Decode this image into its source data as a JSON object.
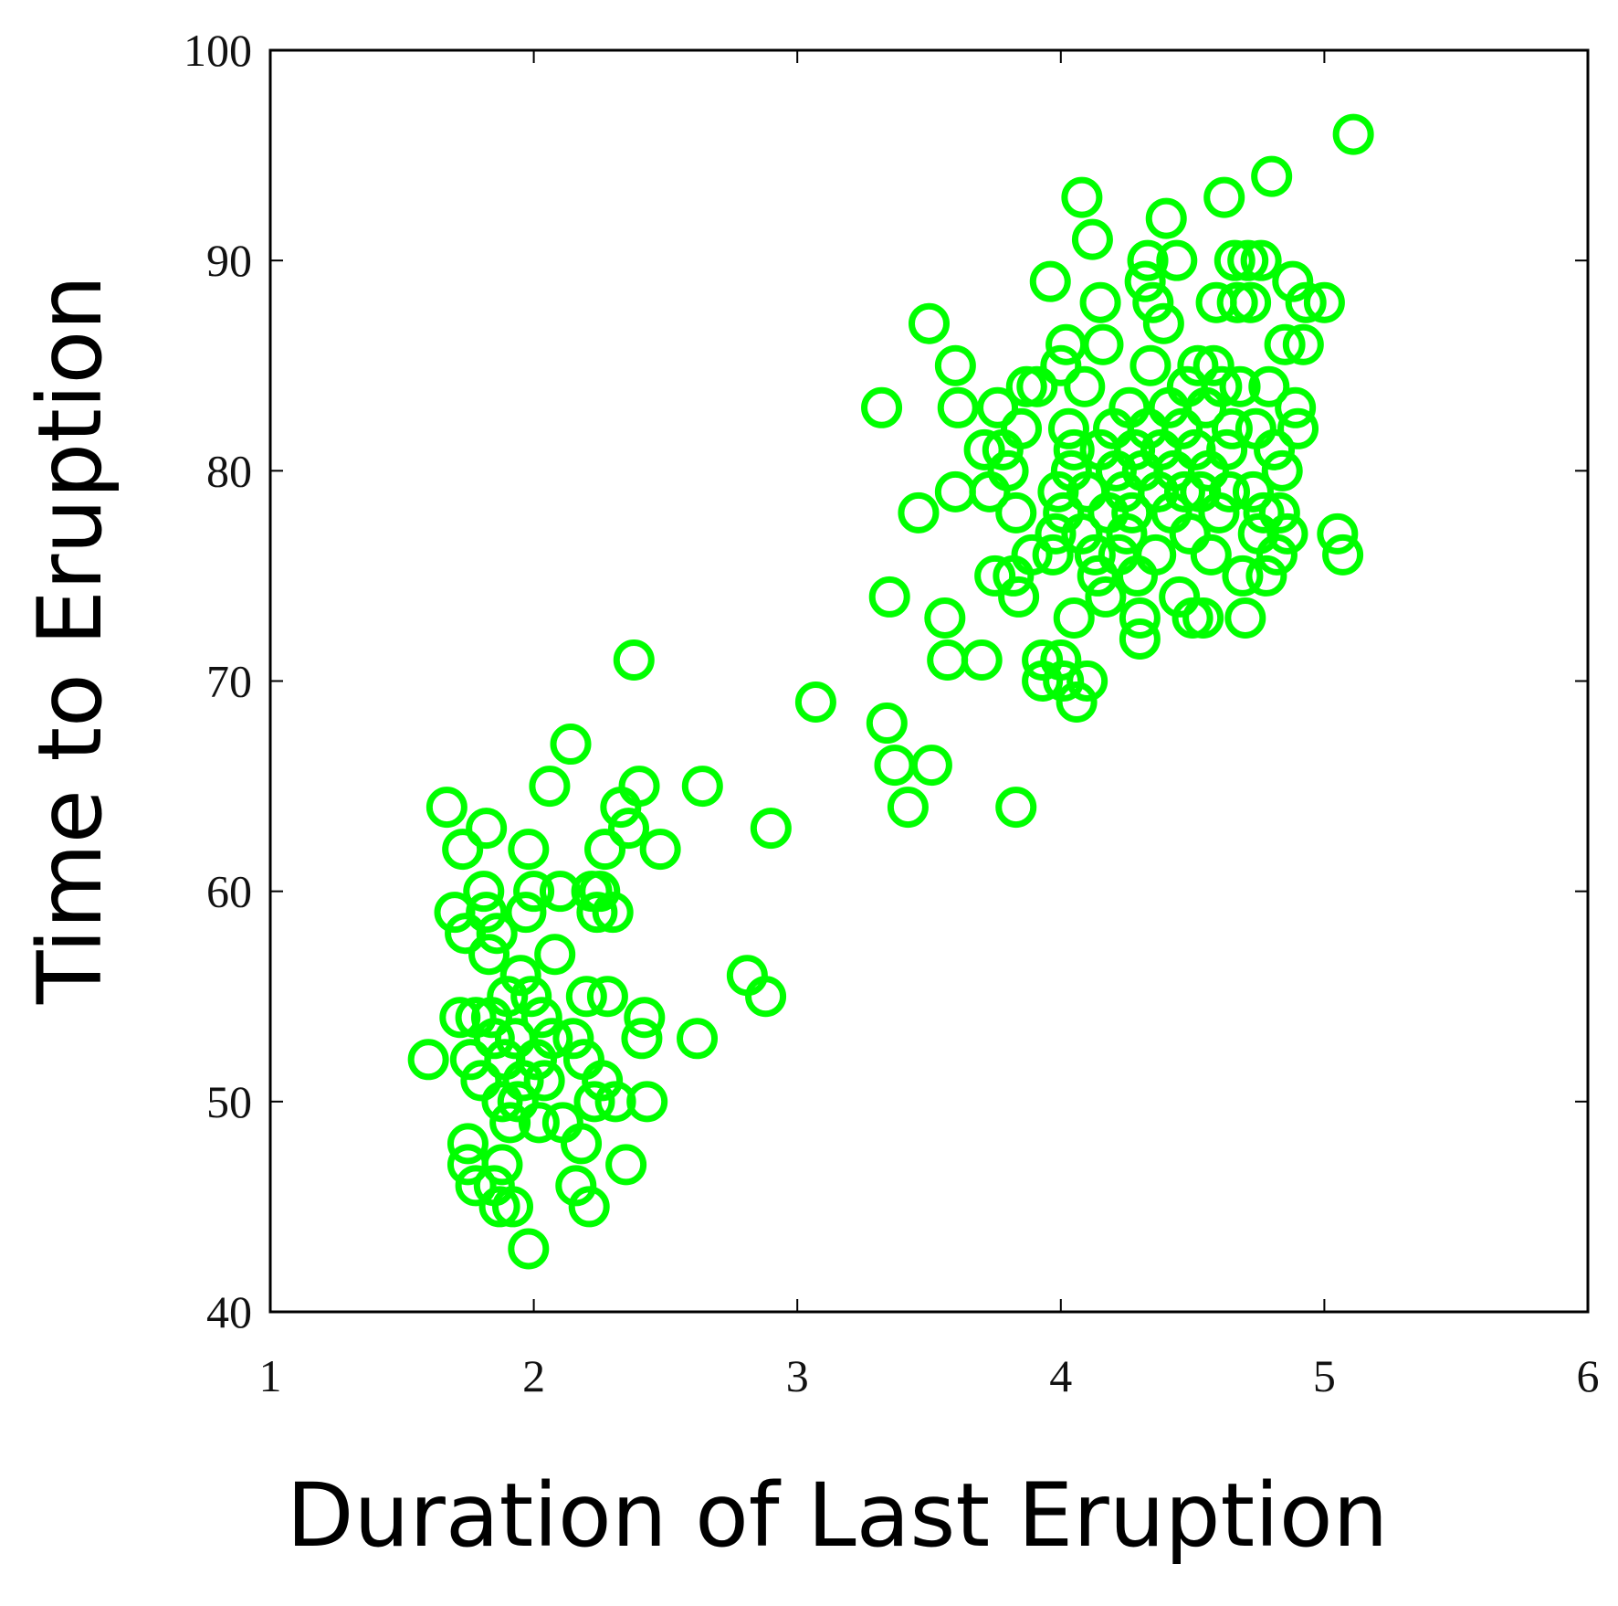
{
  "chart_data": {
    "type": "scatter",
    "title": "",
    "xlabel": "Duration of Last Eruption",
    "ylabel": "Time to Eruption",
    "xlim": [
      1,
      6
    ],
    "ylim": [
      40,
      100
    ],
    "xticks": [
      1,
      2,
      3,
      4,
      5,
      6
    ],
    "yticks": [
      40,
      50,
      60,
      70,
      80,
      90,
      100
    ],
    "grid": false,
    "marker": "open-circle",
    "marker_color": "#00ff00",
    "points": [
      [
        1.6,
        52
      ],
      [
        1.67,
        64
      ],
      [
        1.7,
        59
      ],
      [
        1.72,
        54
      ],
      [
        1.73,
        62
      ],
      [
        1.74,
        58
      ],
      [
        1.75,
        48
      ],
      [
        1.75,
        47
      ],
      [
        1.76,
        52
      ],
      [
        1.78,
        46
      ],
      [
        1.78,
        54
      ],
      [
        1.8,
        51
      ],
      [
        1.81,
        60
      ],
      [
        1.82,
        63
      ],
      [
        1.82,
        59
      ],
      [
        1.83,
        57
      ],
      [
        1.84,
        54
      ],
      [
        1.85,
        53
      ],
      [
        1.85,
        46
      ],
      [
        1.86,
        58
      ],
      [
        1.87,
        45
      ],
      [
        1.88,
        50
      ],
      [
        1.88,
        47
      ],
      [
        1.89,
        52
      ],
      [
        1.9,
        55
      ],
      [
        1.91,
        49
      ],
      [
        1.92,
        45
      ],
      [
        1.93,
        53
      ],
      [
        1.94,
        50
      ],
      [
        1.95,
        56
      ],
      [
        1.96,
        51
      ],
      [
        1.97,
        59
      ],
      [
        1.98,
        62
      ],
      [
        1.98,
        43
      ],
      [
        1.99,
        55
      ],
      [
        2.0,
        60
      ],
      [
        2.01,
        52
      ],
      [
        2.02,
        49
      ],
      [
        2.03,
        54
      ],
      [
        2.04,
        51
      ],
      [
        2.06,
        65
      ],
      [
        2.07,
        53
      ],
      [
        2.08,
        57
      ],
      [
        2.1,
        60
      ],
      [
        2.11,
        49
      ],
      [
        2.14,
        67
      ],
      [
        2.15,
        53
      ],
      [
        2.16,
        46
      ],
      [
        2.18,
        48
      ],
      [
        2.19,
        52
      ],
      [
        2.2,
        55
      ],
      [
        2.21,
        45
      ],
      [
        2.22,
        60
      ],
      [
        2.23,
        50
      ],
      [
        2.24,
        59
      ],
      [
        2.25,
        60
      ],
      [
        2.26,
        51
      ],
      [
        2.27,
        62
      ],
      [
        2.28,
        55
      ],
      [
        2.3,
        59
      ],
      [
        2.31,
        50
      ],
      [
        2.33,
        64
      ],
      [
        2.35,
        47
      ],
      [
        2.36,
        63
      ],
      [
        2.38,
        71
      ],
      [
        2.4,
        65
      ],
      [
        2.41,
        53
      ],
      [
        2.42,
        54
      ],
      [
        2.43,
        50
      ],
      [
        2.48,
        62
      ],
      [
        2.62,
        53
      ],
      [
        2.64,
        65
      ],
      [
        2.81,
        56
      ],
      [
        2.88,
        55
      ],
      [
        2.9,
        63
      ],
      [
        3.07,
        69
      ],
      [
        3.32,
        83
      ],
      [
        3.34,
        68
      ],
      [
        3.35,
        74
      ],
      [
        3.37,
        66
      ],
      [
        3.42,
        64
      ],
      [
        3.46,
        78
      ],
      [
        3.5,
        87
      ],
      [
        3.51,
        66
      ],
      [
        3.56,
        73
      ],
      [
        3.57,
        71
      ],
      [
        3.6,
        85
      ],
      [
        3.6,
        79
      ],
      [
        3.61,
        83
      ],
      [
        3.7,
        71
      ],
      [
        3.71,
        81
      ],
      [
        3.73,
        79
      ],
      [
        3.75,
        75
      ],
      [
        3.76,
        83
      ],
      [
        3.78,
        81
      ],
      [
        3.8,
        80
      ],
      [
        3.82,
        75
      ],
      [
        3.83,
        64
      ],
      [
        3.83,
        78
      ],
      [
        3.84,
        74
      ],
      [
        3.85,
        82
      ],
      [
        3.87,
        84
      ],
      [
        3.89,
        76
      ],
      [
        3.91,
        84
      ],
      [
        3.93,
        71
      ],
      [
        3.93,
        70
      ],
      [
        3.96,
        89
      ],
      [
        3.97,
        76
      ],
      [
        3.98,
        77
      ],
      [
        3.99,
        79
      ],
      [
        4.0,
        85
      ],
      [
        4.0,
        71
      ],
      [
        4.01,
        78
      ],
      [
        4.01,
        70
      ],
      [
        4.02,
        86
      ],
      [
        4.03,
        82
      ],
      [
        4.04,
        80
      ],
      [
        4.05,
        73
      ],
      [
        4.05,
        81
      ],
      [
        4.06,
        69
      ],
      [
        4.08,
        77
      ],
      [
        4.08,
        93
      ],
      [
        4.09,
        84
      ],
      [
        4.1,
        70
      ],
      [
        4.1,
        79
      ],
      [
        4.12,
        91
      ],
      [
        4.13,
        76
      ],
      [
        4.14,
        75
      ],
      [
        4.15,
        88
      ],
      [
        4.15,
        81
      ],
      [
        4.16,
        86
      ],
      [
        4.17,
        74
      ],
      [
        4.18,
        78
      ],
      [
        4.2,
        82
      ],
      [
        4.21,
        80
      ],
      [
        4.22,
        76
      ],
      [
        4.24,
        79
      ],
      [
        4.25,
        77
      ],
      [
        4.26,
        83
      ],
      [
        4.27,
        78
      ],
      [
        4.28,
        81
      ],
      [
        4.29,
        75
      ],
      [
        4.3,
        72
      ],
      [
        4.3,
        73
      ],
      [
        4.31,
        80
      ],
      [
        4.32,
        89
      ],
      [
        4.33,
        90
      ],
      [
        4.33,
        82
      ],
      [
        4.34,
        85
      ],
      [
        4.35,
        88
      ],
      [
        4.36,
        76
      ],
      [
        4.37,
        79
      ],
      [
        4.38,
        81
      ],
      [
        4.39,
        87
      ],
      [
        4.4,
        92
      ],
      [
        4.41,
        83
      ],
      [
        4.42,
        78
      ],
      [
        4.43,
        80
      ],
      [
        4.44,
        90
      ],
      [
        4.45,
        74
      ],
      [
        4.46,
        82
      ],
      [
        4.47,
        79
      ],
      [
        4.48,
        84
      ],
      [
        4.49,
        77
      ],
      [
        4.5,
        73
      ],
      [
        4.51,
        81
      ],
      [
        4.52,
        85
      ],
      [
        4.53,
        79
      ],
      [
        4.54,
        73
      ],
      [
        4.55,
        83
      ],
      [
        4.56,
        80
      ],
      [
        4.57,
        76
      ],
      [
        4.58,
        85
      ],
      [
        4.59,
        88
      ],
      [
        4.6,
        78
      ],
      [
        4.61,
        84
      ],
      [
        4.62,
        93
      ],
      [
        4.63,
        81
      ],
      [
        4.64,
        79
      ],
      [
        4.65,
        82
      ],
      [
        4.66,
        90
      ],
      [
        4.67,
        88
      ],
      [
        4.68,
        84
      ],
      [
        4.69,
        75
      ],
      [
        4.7,
        73
      ],
      [
        4.71,
        90
      ],
      [
        4.72,
        88
      ],
      [
        4.73,
        79
      ],
      [
        4.74,
        82
      ],
      [
        4.75,
        77
      ],
      [
        4.76,
        90
      ],
      [
        4.77,
        78
      ],
      [
        4.78,
        75
      ],
      [
        4.79,
        84
      ],
      [
        4.8,
        94
      ],
      [
        4.81,
        81
      ],
      [
        4.82,
        76
      ],
      [
        4.83,
        78
      ],
      [
        4.84,
        80
      ],
      [
        4.85,
        86
      ],
      [
        4.86,
        77
      ],
      [
        4.88,
        89
      ],
      [
        4.89,
        83
      ],
      [
        4.9,
        82
      ],
      [
        4.92,
        86
      ],
      [
        4.93,
        88
      ],
      [
        5.0,
        88
      ],
      [
        5.05,
        77
      ],
      [
        5.07,
        76
      ],
      [
        5.11,
        96
      ]
    ]
  }
}
